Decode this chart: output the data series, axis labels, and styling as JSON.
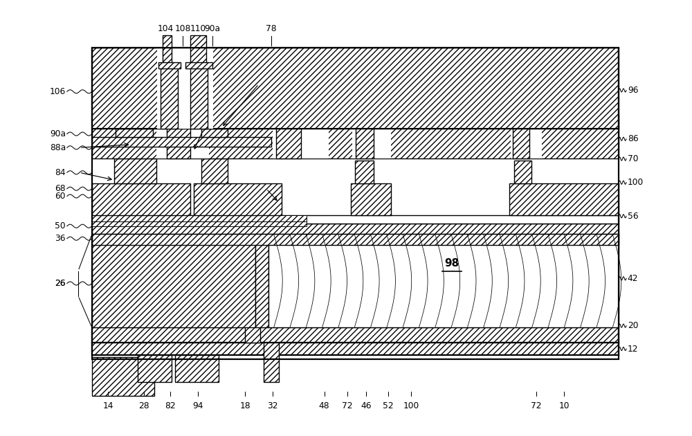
{
  "bg_color": "#ffffff",
  "fig_width": 10.0,
  "fig_height": 6.3,
  "dpi": 100,
  "top_labels": [
    [
      "104",
      2.1
    ],
    [
      "108",
      2.38
    ],
    [
      "110",
      2.62
    ],
    [
      "90a",
      2.85
    ],
    [
      "78",
      3.8
    ]
  ],
  "left_labels": [
    [
      "106",
      5.18
    ],
    [
      "90a",
      4.5
    ],
    [
      "88a",
      4.28
    ],
    [
      "84",
      3.88
    ],
    [
      "68",
      3.62
    ],
    [
      "60",
      3.5
    ],
    [
      "50",
      3.02
    ],
    [
      "36",
      2.82
    ],
    [
      "26",
      2.1
    ]
  ],
  "right_labels": [
    [
      "96",
      5.2
    ],
    [
      "86",
      4.42
    ],
    [
      "70",
      4.1
    ],
    [
      "100",
      3.72
    ],
    [
      "56",
      3.18
    ],
    [
      "42",
      2.18
    ],
    [
      "20",
      1.42
    ],
    [
      "12",
      1.05
    ]
  ],
  "bottom_labels": [
    [
      "14",
      1.18
    ],
    [
      "28",
      1.75
    ],
    [
      "82",
      2.18
    ],
    [
      "94",
      2.62
    ],
    [
      "18",
      3.38
    ],
    [
      "32",
      3.82
    ],
    [
      "48",
      4.65
    ],
    [
      "72",
      5.02
    ],
    [
      "46",
      5.32
    ],
    [
      "52",
      5.68
    ],
    [
      "100",
      6.05
    ],
    [
      "72",
      8.05
    ],
    [
      "10",
      8.5
    ]
  ]
}
